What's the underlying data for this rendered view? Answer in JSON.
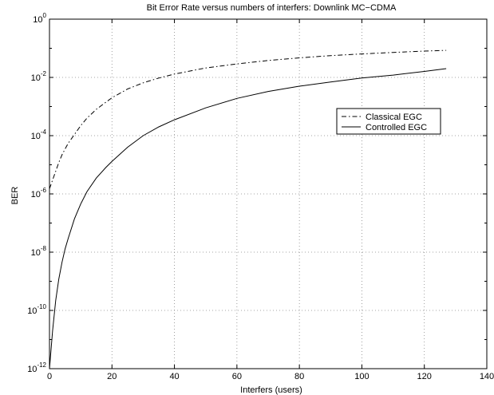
{
  "chart_data": {
    "type": "line",
    "title": "Bit Error Rate versus numbers of interfers: Downlink MC−CDMA",
    "xlabel": "Interfers (users)",
    "ylabel": "BER",
    "xlim": [
      0,
      140
    ],
    "ylim": [
      1e-12,
      1
    ],
    "yscale": "log",
    "grid": true,
    "legend_position": "right",
    "x_ticks": [
      0,
      20,
      40,
      60,
      80,
      100,
      120,
      140
    ],
    "y_ticks": [
      {
        "value": 1,
        "base": "10",
        "exp": "0"
      },
      {
        "value": 0.01,
        "base": "10",
        "exp": "-2"
      },
      {
        "value": 0.0001,
        "base": "10",
        "exp": "-4"
      },
      {
        "value": 1e-06,
        "base": "10",
        "exp": "-6"
      },
      {
        "value": 1e-08,
        "base": "10",
        "exp": "-8"
      },
      {
        "value": 1e-10,
        "base": "10",
        "exp": "-10"
      },
      {
        "value": 1e-12,
        "base": "10",
        "exp": "-12"
      }
    ],
    "series": [
      {
        "name": "Classical EGC",
        "style": "dashdot",
        "color": "#000000",
        "x": [
          0,
          1,
          2,
          3,
          4,
          5,
          6,
          8,
          10,
          12,
          15,
          18,
          20,
          25,
          30,
          35,
          40,
          50,
          60,
          70,
          80,
          90,
          100,
          110,
          120,
          127
        ],
        "y": [
          1.5e-06,
          3e-06,
          6e-06,
          1.2e-05,
          2.2e-05,
          3.5e-05,
          5.5e-05,
          0.00011,
          0.00022,
          0.0004,
          0.0008,
          0.0014,
          0.002,
          0.004,
          0.0065,
          0.0095,
          0.013,
          0.021,
          0.029,
          0.038,
          0.047,
          0.056,
          0.064,
          0.072,
          0.08,
          0.085
        ]
      },
      {
        "name": "Controlled EGC",
        "style": "solid",
        "color": "#000000",
        "x": [
          0,
          1,
          2,
          3,
          4,
          5,
          6,
          8,
          10,
          12,
          15,
          18,
          20,
          25,
          30,
          35,
          40,
          50,
          60,
          70,
          80,
          90,
          100,
          110,
          120,
          127
        ],
        "y": [
          1e-12,
          2e-11,
          2.2e-10,
          1.2e-09,
          4.5e-09,
          1.3e-08,
          3e-08,
          1.4e-07,
          4.5e-07,
          1.2e-06,
          3.5e-06,
          8e-06,
          1.3e-05,
          4e-05,
          0.0001,
          0.0002,
          0.00035,
          0.0009,
          0.0019,
          0.0033,
          0.005,
          0.007,
          0.0095,
          0.012,
          0.016,
          0.02
        ]
      }
    ]
  }
}
